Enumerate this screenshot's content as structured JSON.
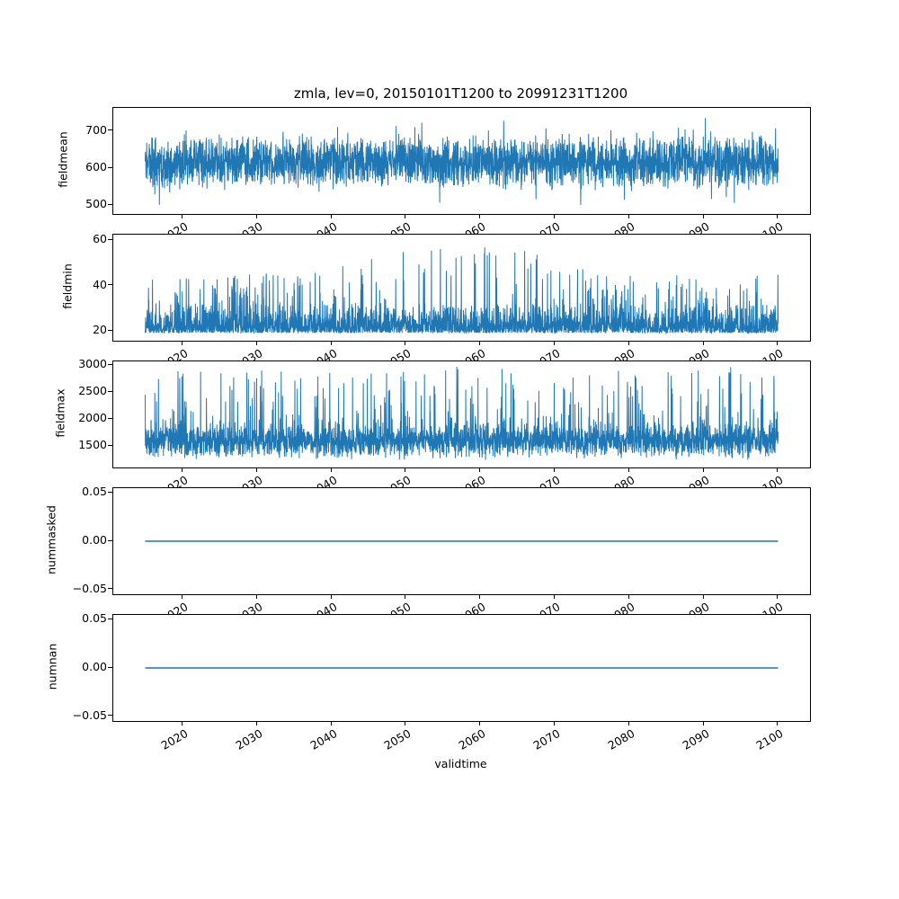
{
  "figure": {
    "title": "zmla, lev=0, 20150101T1200 to 20991231T1200",
    "line_color": "#1f77b4",
    "background": "#ffffff",
    "grid": false,
    "legend": "none"
  },
  "xaxis": {
    "label": "validtime",
    "tick_values": [
      2020,
      2030,
      2040,
      2050,
      2060,
      2070,
      2080,
      2090,
      2100
    ],
    "tick_labels": [
      "2020",
      "2030",
      "2040",
      "2050",
      "2060",
      "2070",
      "2080",
      "2090",
      "2100"
    ],
    "tick_rotation_deg": 30,
    "lim": [
      2010.71,
      2104.29
    ],
    "data_range": [
      2015.0,
      2100.0
    ]
  },
  "chart_data": [
    {
      "type": "line",
      "name": "fieldmean",
      "ylabel": "fieldmean",
      "ylim": [
        476,
        763
      ],
      "yticks": [
        {
          "v": 700,
          "label": "700"
        },
        {
          "v": 600,
          "label": "600"
        },
        {
          "v": 500,
          "label": "500"
        }
      ],
      "series": {
        "kind": "noisy-band",
        "seed": 11,
        "points": 3300,
        "base": 615,
        "band_halfwidth": 75,
        "spike_up": {
          "prob": 0.04,
          "min": 15,
          "max": 70
        },
        "spike_down": {
          "prob": 0.035,
          "min": 10,
          "max": 58
        },
        "clip": [
          488,
          756
        ],
        "summary": "dense noisy series, core ~545-690, excursions ~490-755"
      }
    },
    {
      "type": "line",
      "name": "fieldmin",
      "ylabel": "fieldmin",
      "ylim": [
        15.8,
        62.4
      ],
      "yticks": [
        {
          "v": 60,
          "label": "60"
        },
        {
          "v": 40,
          "label": "40"
        },
        {
          "v": 20,
          "label": "20"
        }
      ],
      "series": {
        "kind": "noisy-floor",
        "seed": 23,
        "points": 3300,
        "base": 19.2,
        "jitter": 14,
        "spike_prob": 0.055,
        "spike_from": 26,
        "amp_base": 19,
        "amp_peak": 15,
        "amp_center": 2057,
        "amp_sigma": 15,
        "clip": [
          18.8,
          60.3
        ],
        "summary": "dense floor ~19-33 with upward spikes to ~45, peaking ~60 near 2055-2060"
      }
    },
    {
      "type": "line",
      "name": "fieldmax",
      "ylabel": "fieldmax",
      "ylim": [
        1100,
        3067
      ],
      "yticks": [
        {
          "v": 3000,
          "label": "3000"
        },
        {
          "v": 2500,
          "label": "2500"
        },
        {
          "v": 2000,
          "label": "2000"
        },
        {
          "v": 1500,
          "label": "1500"
        }
      ],
      "series": {
        "kind": "noisy-spiky",
        "seed": 37,
        "points": 3300,
        "base": 1580,
        "band_halfwidth": 345,
        "spike_prob": 0.085,
        "spike_from": 1900,
        "spike_amp": 1000,
        "spike_pow": 2.0,
        "rare_prob": 0.004,
        "rare_from": 2780,
        "rare_amp": 200,
        "clip": [
          1175,
          2985
        ],
        "summary": "dense band ~1250-1925 with frequent spikes 2000-2800, rare peaks ~2970"
      }
    },
    {
      "type": "line",
      "name": "nummasked",
      "ylabel": "nummasked",
      "ylim": [
        -0.055,
        0.055
      ],
      "yticks": [
        {
          "v": 0.05,
          "label": "0.05"
        },
        {
          "v": 0.0,
          "label": "0.00"
        },
        {
          "v": -0.05,
          "label": "−0.05"
        }
      ],
      "series": {
        "kind": "constant",
        "value": 0.0,
        "summary": "flat line at 0"
      }
    },
    {
      "type": "line",
      "name": "numnan",
      "ylabel": "numnan",
      "ylim": [
        -0.055,
        0.055
      ],
      "yticks": [
        {
          "v": 0.05,
          "label": "0.05"
        },
        {
          "v": 0.0,
          "label": "0.00"
        },
        {
          "v": -0.05,
          "label": "−0.05"
        }
      ],
      "series": {
        "kind": "constant",
        "value": 0.0,
        "summary": "flat line at 0"
      }
    }
  ]
}
